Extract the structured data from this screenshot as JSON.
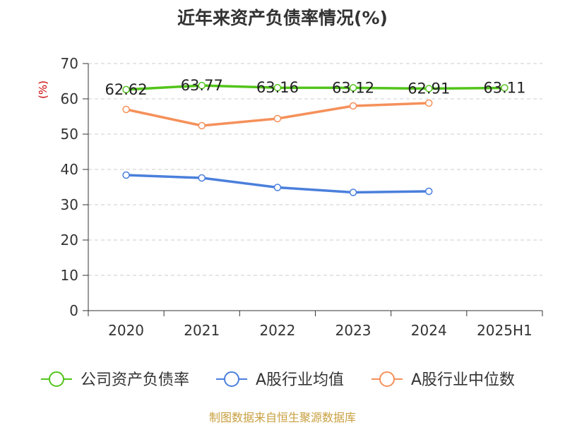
{
  "title": "近年来资产负债率情况(%)",
  "footer": "制图数据来自恒生聚源数据库",
  "chart_data": {
    "type": "line",
    "title": "近年来资产负债率情况(%)",
    "ylabel": "(%)",
    "xlabel": "",
    "categories": [
      "2020",
      "2021",
      "2022",
      "2023",
      "2024",
      "2025H1"
    ],
    "ylim": [
      0,
      70
    ],
    "yticks": [
      0,
      10,
      20,
      30,
      40,
      50,
      60,
      70
    ],
    "grid": true,
    "legend_position": "bottom",
    "series": [
      {
        "name": "公司资产负债率",
        "color": "#52c41a",
        "values": [
          62.62,
          63.77,
          63.16,
          63.12,
          62.91,
          63.11
        ],
        "labels": true
      },
      {
        "name": "A股行业均值",
        "color": "#4a7fdc",
        "values": [
          38.4,
          37.6,
          34.9,
          33.5,
          33.8,
          null
        ],
        "labels": false
      },
      {
        "name": "A股行业中位数",
        "color": "#f5905a",
        "values": [
          57.0,
          52.4,
          54.4,
          58.0,
          58.8,
          null
        ],
        "labels": false
      }
    ]
  }
}
